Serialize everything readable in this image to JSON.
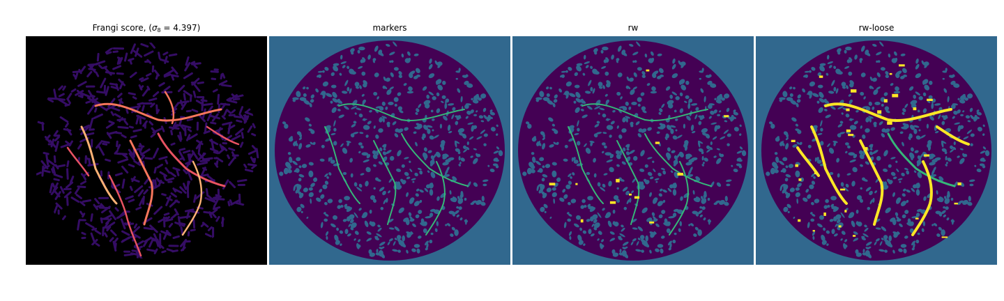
{
  "figure": {
    "panels": [
      {
        "title_prefix": "Frangi score, (",
        "title_sigma": "σ",
        "title_sub": "8",
        "title_suffix": " = 4.397)",
        "colormap": "magma",
        "background": "#000000",
        "foreground": "#1a0a4a"
      },
      {
        "title": "markers",
        "colormap": "viridis",
        "background": "#31688e",
        "foreground": "#440154",
        "marker_color": "#35b779"
      },
      {
        "title": "rw",
        "colormap": "viridis",
        "background": "#31688e",
        "foreground": "#440154",
        "marker_color": "#35b779",
        "highlight_color": "#fde725"
      },
      {
        "title": "rw-loose",
        "colormap": "viridis",
        "background": "#31688e",
        "foreground": "#440154",
        "marker_color": "#35b779",
        "highlight_color": "#fde725"
      }
    ]
  }
}
